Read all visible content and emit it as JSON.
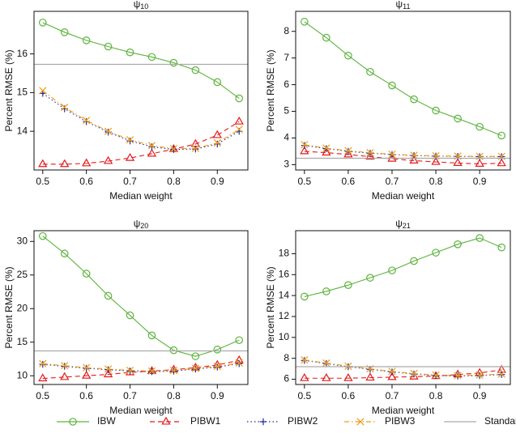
{
  "chart_data": [
    {
      "type": "line",
      "title_symbol": "ψ",
      "title_subscript": "10",
      "xlabel": "Median weight",
      "ylabel": "Percent RMSE (%)",
      "x": [
        0.5,
        0.55,
        0.6,
        0.65,
        0.7,
        0.75,
        0.8,
        0.85,
        0.9,
        0.95
      ],
      "xlim": [
        0.48,
        0.97
      ],
      "xticks": [
        0.5,
        0.6,
        0.7,
        0.8,
        0.9
      ],
      "ylim": [
        13.0,
        17.1
      ],
      "yticks": [
        14,
        15,
        16
      ],
      "series": [
        {
          "name": "IBW",
          "color": "#5cb43c",
          "marker": "circle",
          "dash": "solid",
          "values": [
            16.81,
            16.56,
            16.35,
            16.19,
            16.04,
            15.92,
            15.77,
            15.58,
            15.27,
            14.85
          ]
        },
        {
          "name": "PIBW1",
          "color": "#e41a1c",
          "marker": "triangle",
          "dash": "dashed",
          "values": [
            13.15,
            13.15,
            13.17,
            13.23,
            13.31,
            13.42,
            13.54,
            13.67,
            13.9,
            14.25
          ]
        },
        {
          "name": "PIBW2",
          "color": "#1f2f9a",
          "marker": "plus",
          "dash": "dotted",
          "values": [
            14.98,
            14.58,
            14.25,
            13.98,
            13.75,
            13.6,
            13.53,
            13.54,
            13.67,
            14.0
          ]
        },
        {
          "name": "PIBW3",
          "color": "#f09a1a",
          "marker": "cross",
          "dash": "dashdot",
          "values": [
            15.05,
            14.62,
            14.28,
            14.0,
            13.78,
            13.63,
            13.55,
            13.56,
            13.7,
            14.05
          ]
        },
        {
          "name": "Standard",
          "color": "#aaaaaa",
          "hline": 15.73
        }
      ]
    },
    {
      "type": "line",
      "title_symbol": "ψ",
      "title_subscript": "11",
      "xlabel": "Median weight",
      "ylabel": "Percent RMSE (%)",
      "x": [
        0.5,
        0.55,
        0.6,
        0.65,
        0.7,
        0.75,
        0.8,
        0.85,
        0.9,
        0.95
      ],
      "xlim": [
        0.48,
        0.97
      ],
      "xticks": [
        0.5,
        0.6,
        0.7,
        0.8,
        0.9
      ],
      "ylim": [
        2.8,
        8.75
      ],
      "yticks": [
        3,
        4,
        5,
        6,
        7,
        8
      ],
      "series": [
        {
          "name": "IBW",
          "color": "#5cb43c",
          "marker": "circle",
          "dash": "solid",
          "values": [
            8.36,
            7.76,
            7.09,
            6.48,
            5.97,
            5.45,
            5.03,
            4.73,
            4.42,
            4.09
          ]
        },
        {
          "name": "PIBW1",
          "color": "#e41a1c",
          "marker": "triangle",
          "dash": "dashed",
          "values": [
            3.5,
            3.45,
            3.38,
            3.3,
            3.22,
            3.15,
            3.1,
            3.06,
            3.03,
            3.05
          ]
        },
        {
          "name": "PIBW2",
          "color": "#1f2f9a",
          "marker": "plus",
          "dash": "dotted",
          "values": [
            3.72,
            3.6,
            3.5,
            3.43,
            3.38,
            3.34,
            3.32,
            3.31,
            3.3,
            3.3
          ]
        },
        {
          "name": "PIBW3",
          "color": "#f09a1a",
          "marker": "cross",
          "dash": "dashdot",
          "values": [
            3.75,
            3.62,
            3.52,
            3.45,
            3.39,
            3.35,
            3.33,
            3.32,
            3.31,
            3.31
          ]
        },
        {
          "name": "Standard",
          "color": "#aaaaaa",
          "hline": 3.24
        }
      ]
    },
    {
      "type": "line",
      "title_symbol": "ψ",
      "title_subscript": "20",
      "xlabel": "Median weight",
      "ylabel": "Percent RMSE (%)",
      "x": [
        0.5,
        0.55,
        0.6,
        0.65,
        0.7,
        0.75,
        0.8,
        0.85,
        0.9,
        0.95
      ],
      "xlim": [
        0.48,
        0.97
      ],
      "xticks": [
        0.5,
        0.6,
        0.7,
        0.8,
        0.9
      ],
      "ylim": [
        8.7,
        31.6
      ],
      "yticks": [
        10,
        15,
        20,
        25,
        30
      ],
      "series": [
        {
          "name": "IBW",
          "color": "#5cb43c",
          "marker": "circle",
          "dash": "solid",
          "values": [
            30.8,
            28.2,
            25.2,
            21.9,
            19.0,
            16.0,
            13.8,
            12.9,
            13.9,
            15.3
          ]
        },
        {
          "name": "PIBW1",
          "color": "#e41a1c",
          "marker": "triangle",
          "dash": "dashed",
          "values": [
            9.6,
            9.8,
            10.0,
            10.2,
            10.5,
            10.7,
            10.9,
            11.2,
            11.6,
            12.3
          ]
        },
        {
          "name": "PIBW2",
          "color": "#1f2f9a",
          "marker": "plus",
          "dash": "dotted",
          "values": [
            11.7,
            11.4,
            11.1,
            10.9,
            10.7,
            10.6,
            10.7,
            11.0,
            11.3,
            11.8
          ]
        },
        {
          "name": "PIBW3",
          "color": "#f09a1a",
          "marker": "cross",
          "dash": "dashdot",
          "values": [
            11.8,
            11.5,
            11.2,
            11.0,
            10.8,
            10.7,
            10.8,
            11.1,
            11.4,
            11.9
          ]
        },
        {
          "name": "Standard",
          "color": "#aaaaaa",
          "hline": 13.7
        }
      ]
    },
    {
      "type": "line",
      "title_symbol": "ψ",
      "title_subscript": "21",
      "xlabel": "Median weight",
      "ylabel": "Percent RMSE (%)",
      "x": [
        0.5,
        0.55,
        0.6,
        0.65,
        0.7,
        0.75,
        0.8,
        0.85,
        0.9,
        0.95
      ],
      "xlim": [
        0.48,
        0.97
      ],
      "xticks": [
        0.5,
        0.6,
        0.7,
        0.8,
        0.9
      ],
      "ylim": [
        5.5,
        20.2
      ],
      "yticks": [
        6,
        8,
        10,
        12,
        14,
        16,
        18
      ],
      "series": [
        {
          "name": "IBW",
          "color": "#5cb43c",
          "marker": "circle",
          "dash": "solid",
          "values": [
            13.9,
            14.4,
            15.0,
            15.7,
            16.4,
            17.3,
            18.1,
            18.9,
            19.5,
            18.6
          ]
        },
        {
          "name": "PIBW1",
          "color": "#e41a1c",
          "marker": "triangle",
          "dash": "dashed",
          "values": [
            6.1,
            6.1,
            6.1,
            6.15,
            6.2,
            6.25,
            6.3,
            6.45,
            6.6,
            6.9
          ]
        },
        {
          "name": "PIBW2",
          "color": "#1f2f9a",
          "marker": "plus",
          "dash": "dotted",
          "values": [
            7.8,
            7.5,
            7.2,
            6.95,
            6.7,
            6.5,
            6.35,
            6.3,
            6.35,
            6.45
          ]
        },
        {
          "name": "PIBW3",
          "color": "#f09a1a",
          "marker": "cross",
          "dash": "dashdot",
          "values": [
            7.85,
            7.55,
            7.25,
            7.0,
            6.75,
            6.55,
            6.4,
            6.35,
            6.4,
            6.5
          ]
        },
        {
          "name": "Standard",
          "color": "#aaaaaa",
          "hline": 7.2
        }
      ]
    }
  ]
}
